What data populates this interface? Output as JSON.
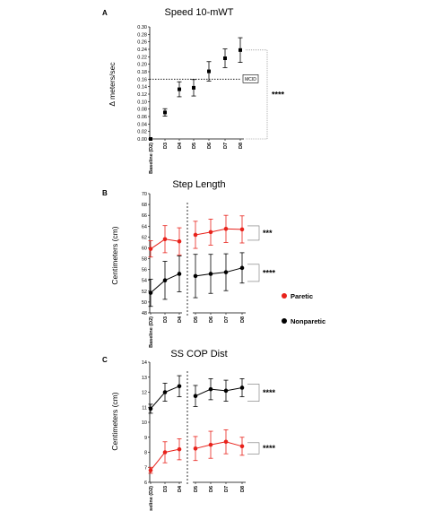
{
  "legend": {
    "paretic_label": "Paretic",
    "nonparetic_label": "Nonparetic",
    "paretic_color": "#e8221b",
    "nonparetic_color": "#000000"
  },
  "chart_data": [
    {
      "panel": "A",
      "title": "Speed 10-mWT",
      "type": "scatter",
      "ylabel": "Δ meters/sec",
      "ylim": [
        0,
        0.3
      ],
      "yticks": [
        "0.00",
        "0.02",
        "0.04",
        "0.06",
        "0.08",
        "0.10",
        "0.12",
        "0.14",
        "0.16",
        "0.18",
        "0.20",
        "0.22",
        "0.24",
        "0.26",
        "0.28",
        "0.30"
      ],
      "categories": [
        "Baseline (D2)",
        "D3",
        "D4",
        "D5",
        "D6",
        "D7",
        "D8"
      ],
      "reference_line": {
        "label": "MCID",
        "value": 0.16
      },
      "significance": "****",
      "series": [
        {
          "color": "#000000",
          "values": [
            0.0,
            0.071,
            0.133,
            0.137,
            0.181,
            0.216,
            0.238
          ],
          "errors": [
            0.0,
            0.01,
            0.02,
            0.022,
            0.026,
            0.025,
            0.033
          ]
        }
      ]
    },
    {
      "panel": "B",
      "title": "Step Length",
      "type": "line",
      "ylabel": "Centimeters (cm)",
      "ylim": [
        48,
        70
      ],
      "yticks": [
        "48",
        "50",
        "52",
        "54",
        "56",
        "58",
        "60",
        "62",
        "64",
        "66",
        "68",
        "70"
      ],
      "categories": [
        "Baseline (D2)",
        "D3",
        "D4",
        "D5",
        "D6",
        "D7",
        "D8"
      ],
      "breaks_after": [
        2
      ],
      "series": [
        {
          "name": "Paretic",
          "color": "#e8221b",
          "values": [
            59.8,
            61.6,
            61.2,
            62.4,
            62.9,
            63.5,
            63.4
          ],
          "errors": [
            1.5,
            2.5,
            2.5,
            2.5,
            2.4,
            2.5,
            2.5
          ],
          "significance": "***"
        },
        {
          "name": "Nonparetic",
          "color": "#000000",
          "values": [
            51.7,
            54.0,
            55.2,
            54.8,
            55.2,
            55.5,
            56.3
          ],
          "errors": [
            2.5,
            3.5,
            3.3,
            4.0,
            3.6,
            3.4,
            2.8
          ],
          "significance": "****"
        }
      ]
    },
    {
      "panel": "C",
      "title": "SS COP Dist",
      "type": "line",
      "ylabel": "Centimeters (cm)",
      "ylim": [
        6,
        14
      ],
      "yticks": [
        "6",
        "7",
        "8",
        "9",
        "10",
        "11",
        "12",
        "13",
        "14"
      ],
      "categories": [
        "Baseline (D2)",
        "D3",
        "D4",
        "D5",
        "D6",
        "D7",
        "D8"
      ],
      "breaks_after": [
        2
      ],
      "series": [
        {
          "name": "Nonparetic",
          "color": "#000000",
          "values": [
            10.9,
            12.0,
            12.4,
            11.75,
            12.2,
            12.1,
            12.3
          ],
          "errors": [
            0.3,
            0.6,
            0.7,
            0.7,
            0.7,
            0.7,
            0.6
          ],
          "significance": "****"
        },
        {
          "name": "Paretic",
          "color": "#e8221b",
          "values": [
            6.8,
            8.0,
            8.2,
            8.25,
            8.5,
            8.7,
            8.4
          ],
          "errors": [
            0.2,
            0.7,
            0.7,
            0.8,
            0.9,
            0.8,
            0.6
          ],
          "significance": "****"
        }
      ]
    }
  ]
}
